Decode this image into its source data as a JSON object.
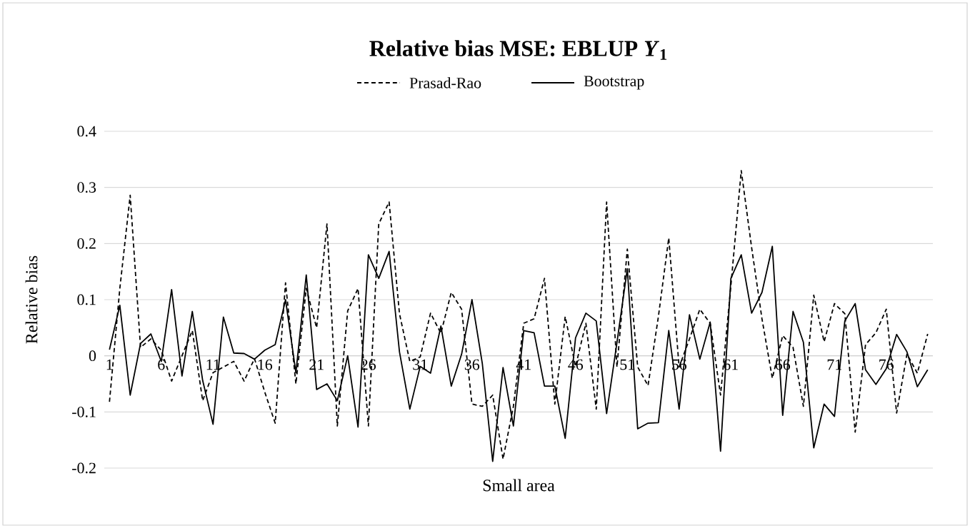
{
  "chart_data": {
    "type": "line",
    "title": "Relative bias MSE: EBLUP *Y*$_{1}$",
    "xlabel": "Small area",
    "ylabel": "Relative bias",
    "categories": [
      "1",
      null,
      null,
      null,
      null,
      "6",
      null,
      null,
      null,
      null,
      "11",
      null,
      null,
      null,
      null,
      "16",
      null,
      null,
      null,
      null,
      "21",
      null,
      null,
      null,
      null,
      "26",
      null,
      null,
      null,
      null,
      "31",
      null,
      null,
      null,
      null,
      "36",
      null,
      null,
      null,
      null,
      "41",
      null,
      null,
      null,
      null,
      "46",
      null,
      null,
      null,
      null,
      "51",
      null,
      null,
      null,
      null,
      "56",
      null,
      null,
      null,
      null,
      "61",
      null,
      null,
      null,
      null,
      "66",
      null,
      null,
      null,
      null,
      "71",
      null,
      null,
      null,
      null,
      "76",
      null,
      null,
      null,
      null
    ],
    "series": [
      {
        "name": "Prasad-Rao",
        "color": "#000000",
        "line_style": "dashed",
        "values": [
          -0.082,
          0.12,
          0.286,
          0.015,
          0.03,
          0.01,
          -0.045,
          0.0,
          0.045,
          -0.08,
          -0.03,
          -0.02,
          -0.01,
          -0.045,
          -0.005,
          -0.065,
          -0.12,
          0.13,
          -0.05,
          0.12,
          0.05,
          0.235,
          -0.125,
          0.08,
          0.12,
          -0.125,
          0.235,
          0.274,
          0.075,
          -0.01,
          -0.002,
          0.076,
          0.04,
          0.113,
          0.083,
          -0.086,
          -0.09,
          -0.07,
          -0.184,
          -0.09,
          0.058,
          0.066,
          0.138,
          -0.086,
          0.07,
          -0.019,
          0.058,
          -0.095,
          0.274,
          -0.02,
          0.19,
          -0.02,
          -0.053,
          0.07,
          0.21,
          -0.02,
          0.03,
          0.083,
          0.058,
          -0.07,
          0.125,
          0.33,
          0.193,
          0.066,
          -0.04,
          0.036,
          0.015,
          -0.09,
          0.108,
          0.025,
          0.093,
          0.075,
          -0.136,
          0.02,
          0.041,
          0.083,
          -0.102,
          0.003,
          -0.031,
          0.039
        ]
      },
      {
        "name": "Bootstrap",
        "color": "#000000",
        "line_style": "solid",
        "values": [
          0.011,
          0.09,
          -0.07,
          0.022,
          0.039,
          -0.01,
          0.118,
          -0.036,
          0.079,
          -0.044,
          -0.122,
          0.069,
          0.005,
          0.004,
          -0.006,
          0.01,
          0.02,
          0.1,
          -0.03,
          0.144,
          -0.06,
          -0.05,
          -0.08,
          0.0,
          -0.127,
          0.18,
          0.138,
          0.186,
          0.007,
          -0.095,
          -0.019,
          -0.031,
          0.053,
          -0.054,
          0.003,
          0.1,
          -0.014,
          -0.188,
          -0.021,
          -0.125,
          0.045,
          0.041,
          -0.054,
          -0.054,
          -0.147,
          0.032,
          0.076,
          0.062,
          -0.103,
          0.024,
          0.155,
          -0.13,
          -0.12,
          -0.119,
          0.045,
          -0.095,
          0.073,
          -0.006,
          0.06,
          -0.17,
          0.138,
          0.18,
          0.076,
          0.113,
          0.195,
          -0.106,
          0.079,
          0.024,
          -0.164,
          -0.086,
          -0.108,
          0.062,
          0.093,
          -0.025,
          -0.051,
          -0.023,
          0.038,
          0.007,
          -0.055,
          -0.025
        ]
      }
    ],
    "ylim": [
      -0.2,
      0.4
    ],
    "yticks": [
      -0.2,
      -0.1,
      0,
      0.1,
      0.2,
      0.3,
      0.4
    ],
    "grid": "y",
    "legend": "top",
    "marker": "none"
  }
}
